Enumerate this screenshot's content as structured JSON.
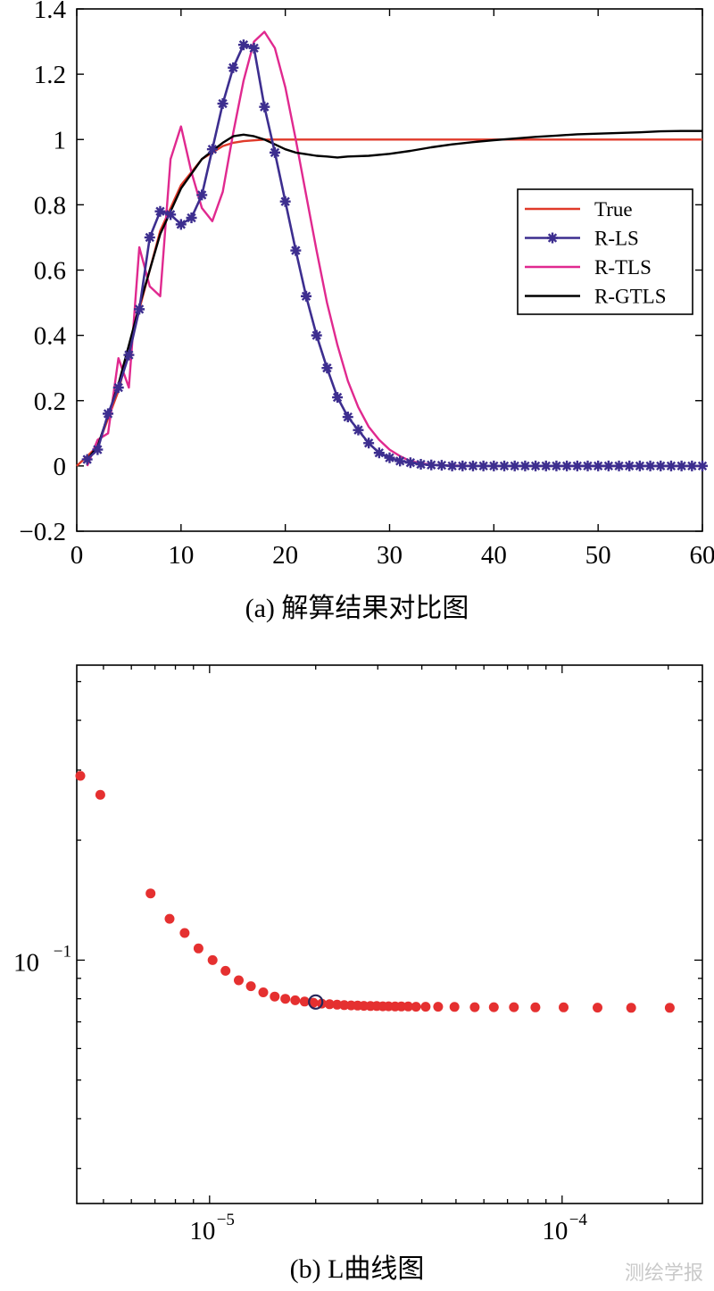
{
  "chart_data": [
    {
      "type": "line",
      "title": "",
      "xlabel": "",
      "ylabel": "",
      "xlim": [
        0,
        60
      ],
      "ylim": [
        -0.2,
        1.4
      ],
      "xticks": [
        "0",
        "10",
        "20",
        "30",
        "40",
        "50",
        "60"
      ],
      "yticks": [
        "-0.2",
        "0",
        "0.2",
        "0.4",
        "0.6",
        "0.8",
        "1",
        "1.2",
        "1.4"
      ],
      "legend_position": "right",
      "series": [
        {
          "name": "True",
          "color": "#e03a2a",
          "marker": "none",
          "x": [
            0,
            2,
            4,
            6,
            8,
            10,
            12,
            14,
            15,
            16,
            18,
            20,
            60
          ],
          "y": [
            0,
            0.06,
            0.23,
            0.48,
            0.72,
            0.86,
            0.94,
            0.98,
            0.99,
            0.995,
            1.0,
            1.0,
            1.0
          ]
        },
        {
          "name": "R-LS",
          "color": "#3d2e8f",
          "marker": "asterisk",
          "x": [
            1,
            2,
            3,
            4,
            5,
            6,
            7,
            8,
            9,
            10,
            11,
            12,
            13,
            14,
            15,
            16,
            17,
            18,
            19,
            20,
            21,
            22,
            23,
            24,
            25,
            26,
            27,
            28,
            29,
            30,
            31,
            32,
            33,
            34,
            35,
            36,
            37,
            38,
            39,
            40,
            41,
            42,
            43,
            44,
            45,
            46,
            47,
            48,
            49,
            50,
            51,
            52,
            53,
            54,
            55,
            56,
            57,
            58,
            59,
            60
          ],
          "y": [
            0.02,
            0.05,
            0.16,
            0.24,
            0.34,
            0.48,
            0.7,
            0.78,
            0.77,
            0.74,
            0.76,
            0.83,
            0.97,
            1.11,
            1.22,
            1.29,
            1.28,
            1.1,
            0.96,
            0.81,
            0.66,
            0.52,
            0.4,
            0.3,
            0.21,
            0.15,
            0.11,
            0.07,
            0.04,
            0.025,
            0.015,
            0.01,
            0.005,
            0.003,
            0.002,
            0,
            0,
            0,
            0,
            0,
            0,
            0,
            0,
            0,
            0,
            0,
            0,
            0,
            0,
            0,
            0,
            0,
            0,
            0,
            0,
            0,
            0,
            0,
            0,
            0
          ]
        },
        {
          "name": "R-TLS",
          "color": "#e0298f",
          "marker": "none",
          "x": [
            1,
            2,
            3,
            4,
            5,
            6,
            7,
            8,
            9,
            10,
            11,
            12,
            13,
            14,
            15,
            16,
            17,
            18,
            19,
            20,
            21,
            22,
            23,
            24,
            25,
            26,
            27,
            28,
            29,
            30,
            31,
            32,
            33,
            34,
            35,
            36,
            40,
            45,
            50,
            55,
            60
          ],
          "y": [
            0.0,
            0.08,
            0.1,
            0.33,
            0.24,
            0.67,
            0.55,
            0.52,
            0.94,
            1.04,
            0.9,
            0.79,
            0.75,
            0.84,
            1.02,
            1.18,
            1.3,
            1.33,
            1.28,
            1.16,
            1.0,
            0.83,
            0.66,
            0.5,
            0.37,
            0.26,
            0.18,
            0.12,
            0.08,
            0.05,
            0.03,
            0.015,
            0.008,
            0.004,
            0.002,
            0.001,
            0,
            0,
            0,
            0,
            0
          ]
        },
        {
          "name": "R-GTLS",
          "color": "#000000",
          "marker": "none",
          "x": [
            1,
            2,
            4,
            6,
            8,
            10,
            12,
            14,
            15,
            16,
            17,
            18,
            19,
            20,
            21,
            22,
            23,
            24,
            25,
            26,
            28,
            30,
            32,
            34,
            36,
            38,
            40,
            42,
            44,
            46,
            48,
            50,
            52,
            54,
            56,
            58,
            60
          ],
          "y": [
            0.02,
            0.06,
            0.25,
            0.49,
            0.71,
            0.85,
            0.94,
            0.99,
            1.01,
            1.015,
            1.01,
            1.0,
            0.985,
            0.97,
            0.96,
            0.955,
            0.95,
            0.948,
            0.945,
            0.948,
            0.95,
            0.956,
            0.965,
            0.976,
            0.985,
            0.992,
            0.998,
            1.003,
            1.008,
            1.012,
            1.016,
            1.018,
            1.02,
            1.022,
            1.025,
            1.026,
            1.026
          ]
        }
      ]
    },
    {
      "type": "scatter",
      "title": "",
      "xlabel": "",
      "ylabel": "",
      "xscale": "log",
      "yscale": "log",
      "xlim": [
        4.2e-06,
        0.00025
      ],
      "ylim": [
        0.0245,
        0.55
      ],
      "xtick_labels": [
        {
          "value": 1e-05,
          "base": "10",
          "exp": "−5"
        },
        {
          "value": 0.0001,
          "base": "10",
          "exp": "−4"
        }
      ],
      "ytick_labels": [
        {
          "value": 0.1,
          "base": "10",
          "exp": "−1"
        }
      ],
      "series": [
        {
          "name": "",
          "color": "#e53030",
          "marker": "dot",
          "x": [
            4.3e-06,
            4.9e-06,
            6.8e-06,
            7.7e-06,
            8.5e-06,
            9.3e-06,
            1.02e-05,
            1.11e-05,
            1.21e-05,
            1.31e-05,
            1.42e-05,
            1.53e-05,
            1.64e-05,
            1.75e-05,
            1.86e-05,
            1.97e-05,
            2.08e-05,
            2.19e-05,
            2.3e-05,
            2.41e-05,
            2.52e-05,
            2.63e-05,
            2.74e-05,
            2.86e-05,
            2.98e-05,
            3.1e-05,
            3.22e-05,
            3.36e-05,
            3.5e-05,
            3.66e-05,
            3.85e-05,
            4.1e-05,
            4.45e-05,
            4.95e-05,
            5.65e-05,
            6.4e-05,
            7.3e-05,
            8.4e-05,
            0.000101,
            0.000126,
            0.000157,
            0.000202
          ],
          "y": [
            0.29,
            0.26,
            0.147,
            0.127,
            0.117,
            0.107,
            0.1,
            0.094,
            0.089,
            0.086,
            0.083,
            0.081,
            0.08,
            0.0793,
            0.0787,
            0.0782,
            0.0778,
            0.0775,
            0.0773,
            0.0771,
            0.077,
            0.0769,
            0.0768,
            0.0767,
            0.0767,
            0.0766,
            0.0766,
            0.0765,
            0.0765,
            0.0765,
            0.0764,
            0.0764,
            0.0764,
            0.0763,
            0.0762,
            0.0762,
            0.0762,
            0.0761,
            0.0761,
            0.076,
            0.0759,
            0.0759
          ]
        }
      ],
      "highlight_point": {
        "x": 2e-05,
        "y": 0.0785,
        "marker": "open-circle",
        "color": "#26265a"
      }
    }
  ],
  "captions": {
    "a": "(a) 解算结果对比图",
    "b": "(b) L曲线图"
  },
  "watermark": "测绘学报"
}
